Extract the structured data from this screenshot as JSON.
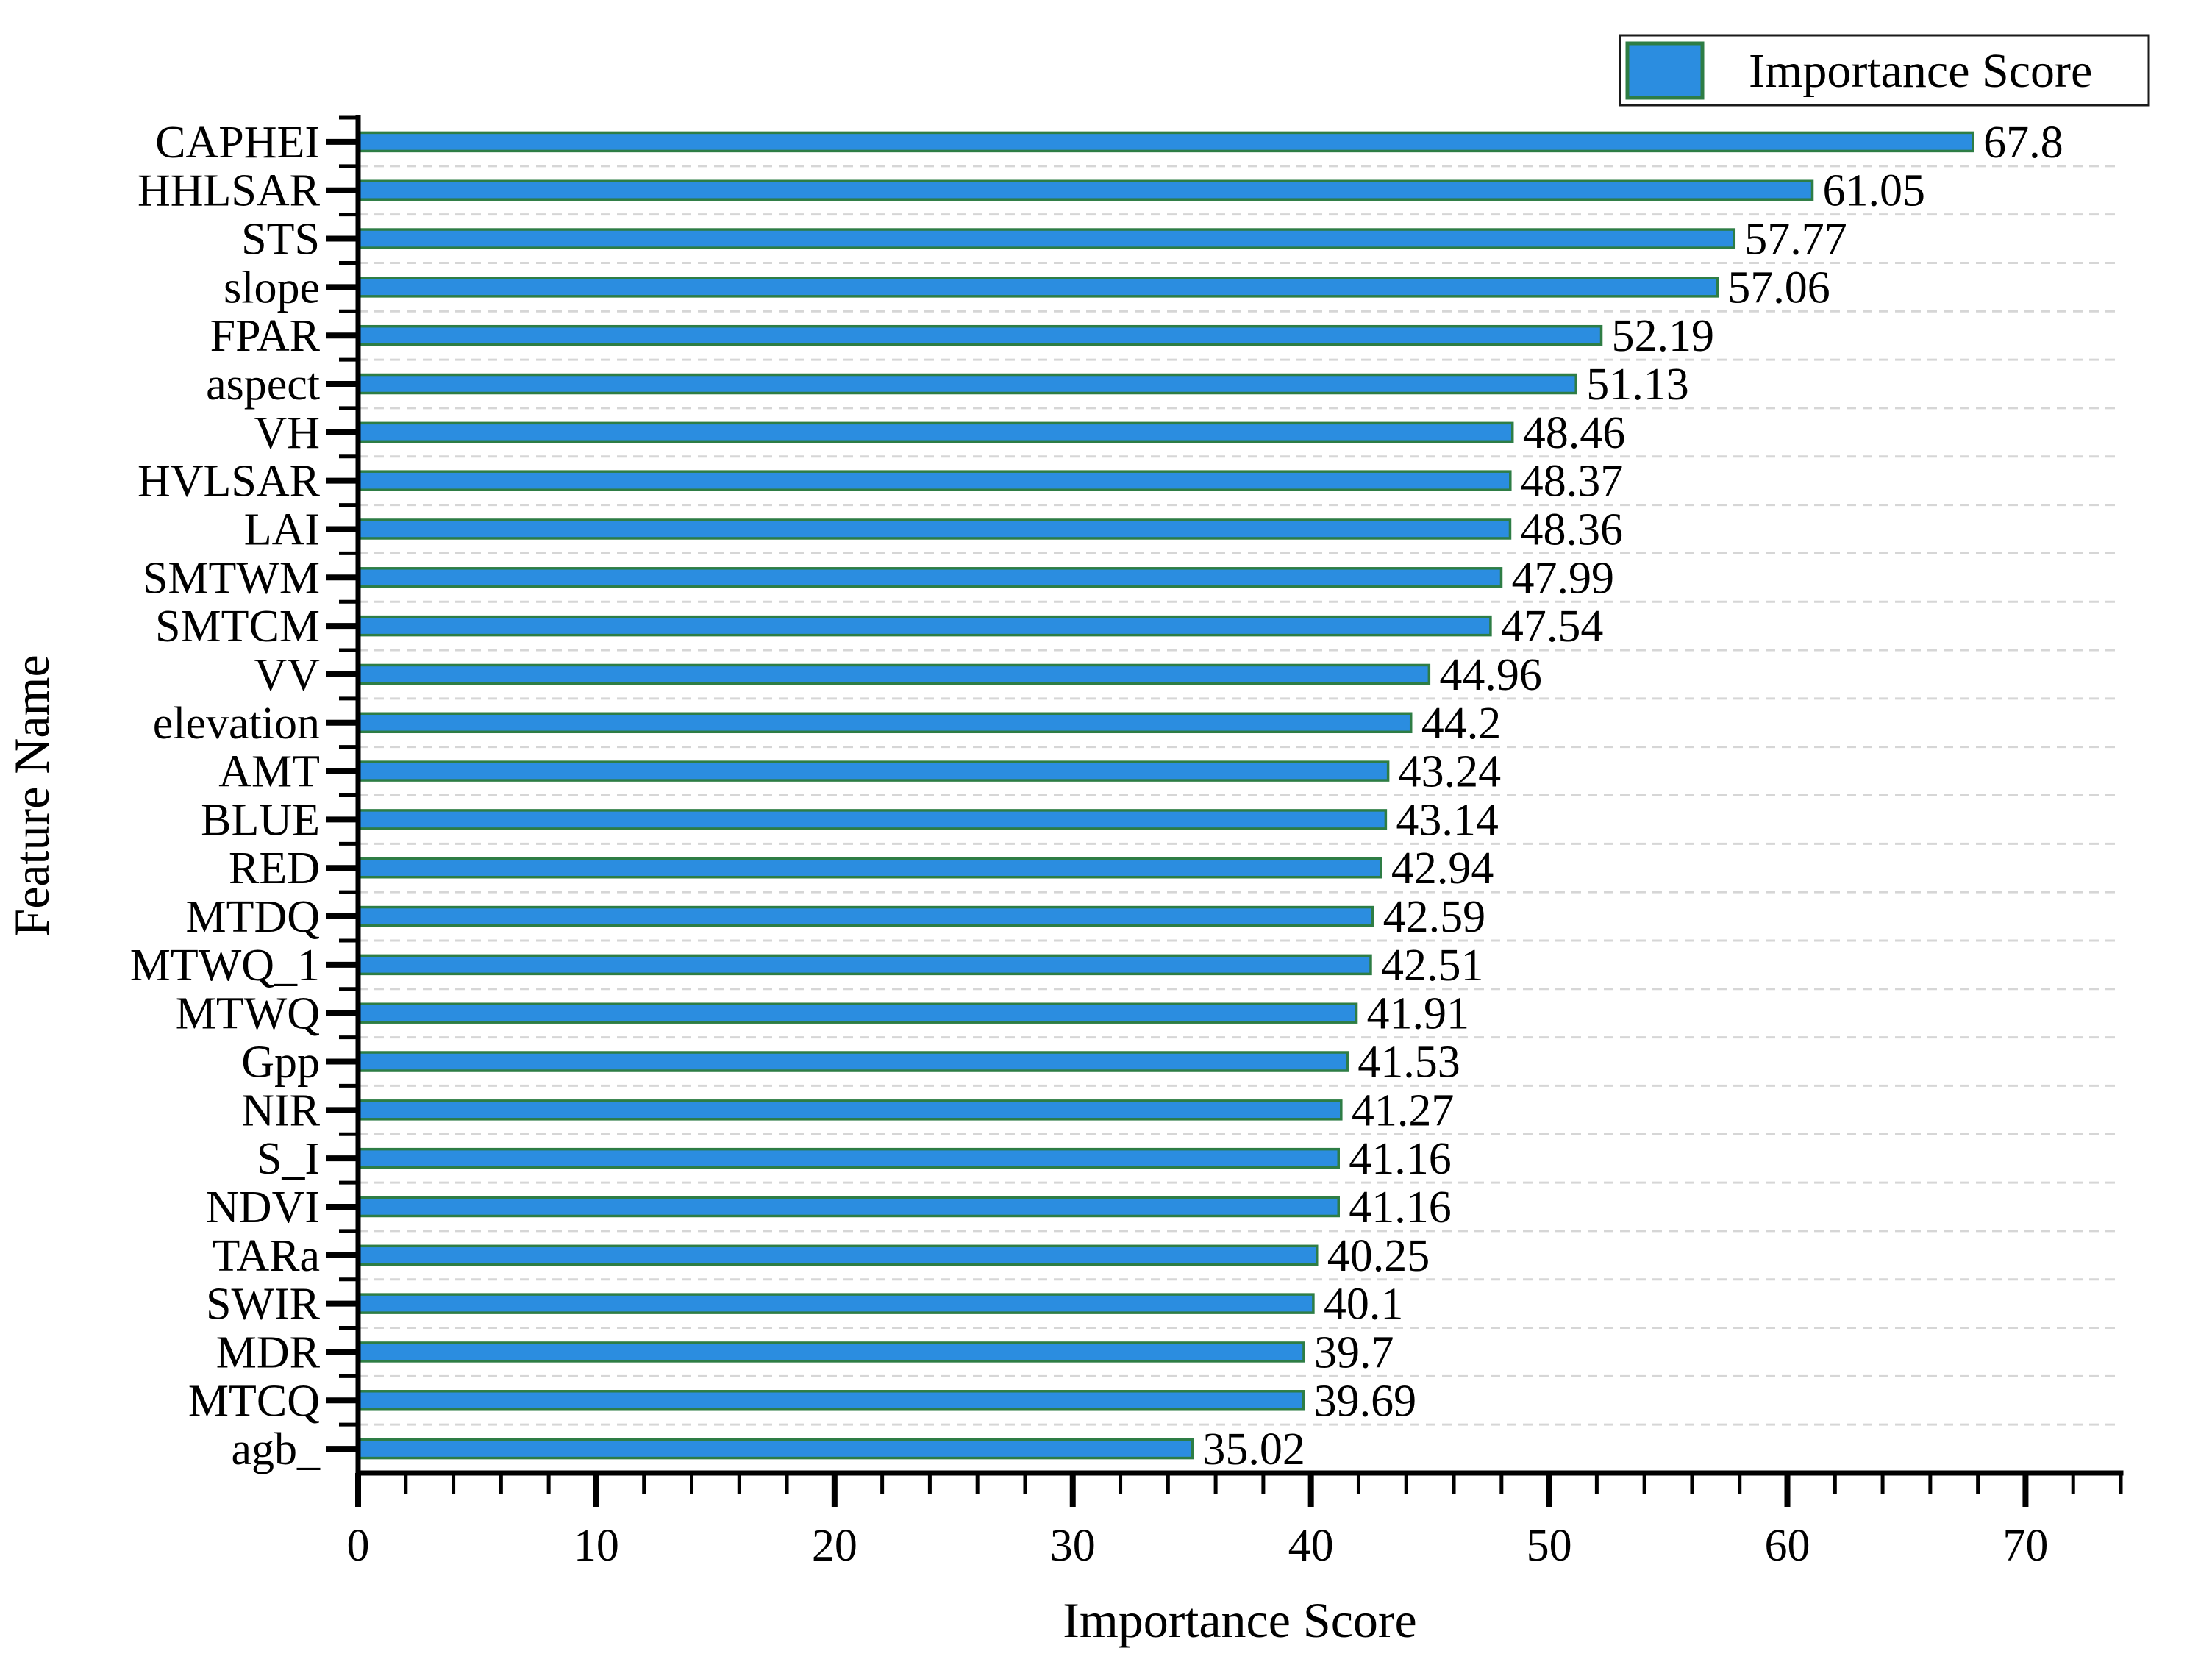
{
  "chart_data": {
    "type": "bar",
    "orientation": "horizontal",
    "title": "",
    "xlabel": "Importance Score",
    "ylabel": "Feature Name",
    "legend": [
      "Importance Score"
    ],
    "legend_position": "top-right",
    "categories": [
      "CAPHEI",
      "HHLSAR",
      "STS",
      "slope",
      "FPAR",
      "aspect",
      "VH",
      "HVLSAR",
      "LAI",
      "SMTWM",
      "SMTCM",
      "VV",
      "elevation",
      "AMT",
      "BLUE",
      "RED",
      "MTDQ",
      "MTWQ_1",
      "MTWQ",
      "Gpp",
      "NIR",
      "S_I",
      "NDVI",
      "TARa",
      "SWIR",
      "MDR",
      "MTCQ",
      "agb_"
    ],
    "values": [
      67.8,
      61.05,
      57.77,
      57.06,
      52.19,
      51.13,
      48.46,
      48.37,
      48.36,
      47.99,
      47.54,
      44.96,
      44.2,
      43.24,
      43.14,
      42.94,
      42.59,
      42.51,
      41.91,
      41.53,
      41.27,
      41.16,
      41.16,
      40.25,
      40.1,
      39.7,
      39.69,
      35.02
    ],
    "value_labels": [
      "67.8",
      "61.05",
      "57.77",
      "57.06",
      "52.19",
      "51.13",
      "48.46",
      "48.37",
      "48.36",
      "47.99",
      "47.54",
      "44.96",
      "44.2",
      "43.24",
      "43.14",
      "42.94",
      "42.59",
      "42.51",
      "41.91",
      "41.53",
      "41.27",
      "41.16",
      "41.16",
      "40.25",
      "40.1",
      "39.7",
      "39.69",
      "35.02"
    ],
    "x_tick_labels": [
      "0",
      "10",
      "20",
      "30",
      "40",
      "50",
      "60",
      "70"
    ],
    "x_ticks": [
      0,
      10,
      20,
      30,
      40,
      50,
      60,
      70
    ],
    "x_minor_step": 2,
    "xlim": [
      0,
      74
    ],
    "grid": "dashed-horizontal-between-bars",
    "colors": {
      "bar_fill": "#2b8de0",
      "bar_border": "#2e7d45",
      "grid": "#d6d6d6",
      "axis": "#000000",
      "background": "#ffffff",
      "legend_border": "#1a1a1a"
    }
  }
}
